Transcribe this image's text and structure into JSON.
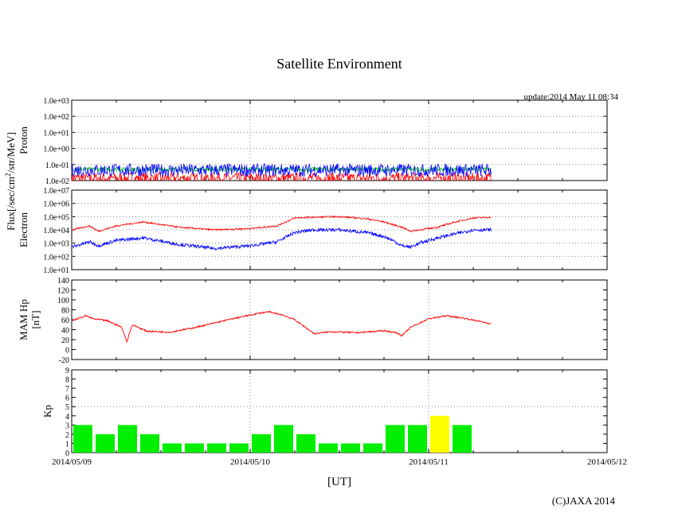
{
  "chart_data": {
    "type": "line",
    "title": "Satellite Environment",
    "update_text": "update:2014 May 11 08:34",
    "copyright": "(C)JAXA 2014",
    "xlabel": "[UT]",
    "x_ticks": [
      "2014/05/09",
      "2014/05/10",
      "2014/05/11",
      "2014/05/12"
    ],
    "flux_label_parts": {
      "base": "Flux[/sec/cm",
      "sup": "2",
      "tail": "/str/MeV]"
    },
    "panels": {
      "proton": {
        "ylabel": "Proton",
        "scale": "log",
        "ylim_exp": [
          -2,
          3
        ],
        "tick_labels": [
          "1.0e-02",
          "1.0e-01",
          "1.0e+00",
          "1.0e+01",
          "1.0e+02",
          "1.0e+03"
        ],
        "series": [
          {
            "color": "#ff0000",
            "level_exp": -1.85,
            "noise_exp": 0.35
          },
          {
            "color": "#00cc00",
            "level_exp": -1.3,
            "noise_exp": 0.12
          },
          {
            "color": "#0000ff",
            "level_exp": -1.35,
            "noise_exp": 0.4
          }
        ]
      },
      "electron": {
        "ylabel": "Electron",
        "scale": "log",
        "ylim_exp": [
          1,
          7
        ],
        "tick_labels": [
          "1.0e+01",
          "1.0e+02",
          "1.0e+03",
          "1.0e+04",
          "1.0e+05",
          "1.0e+06",
          "1.0e+07"
        ],
        "series": [
          {
            "color": "#ff0000",
            "days": [
              0.0,
              0.1,
              0.15,
              0.25,
              0.4,
              0.6,
              0.8,
              1.0,
              1.15,
              1.25,
              1.35,
              1.5,
              1.65,
              1.75,
              1.85,
              1.9,
              1.95,
              2.05,
              2.15,
              2.25,
              2.35
            ],
            "log_values": [
              4.0,
              4.3,
              3.9,
              4.3,
              4.6,
              4.2,
              4.0,
              4.1,
              4.3,
              4.9,
              4.95,
              5.0,
              4.85,
              4.6,
              4.2,
              3.9,
              4.0,
              4.2,
              4.6,
              4.9,
              4.95
            ]
          },
          {
            "color": "#0000ff",
            "days": [
              0.0,
              0.1,
              0.15,
              0.25,
              0.4,
              0.6,
              0.8,
              1.0,
              1.15,
              1.25,
              1.35,
              1.5,
              1.65,
              1.75,
              1.8,
              1.85,
              1.9,
              1.95,
              2.05,
              2.15,
              2.25,
              2.35
            ],
            "log_values": [
              2.7,
              3.1,
              2.8,
              3.2,
              3.4,
              2.9,
              2.6,
              2.8,
              3.1,
              3.8,
              4.0,
              4.0,
              3.8,
              3.5,
              3.2,
              2.8,
              2.7,
              3.0,
              3.4,
              3.7,
              4.0,
              4.0
            ]
          }
        ]
      },
      "hp": {
        "ylabel_line1": "MAM Hp",
        "ylabel_line2": "[nT]",
        "scale": "linear",
        "ylim": [
          -20,
          140
        ],
        "ticks": [
          -20,
          0,
          20,
          40,
          60,
          80,
          100,
          120,
          140
        ],
        "series": [
          {
            "color": "#ff0000",
            "days": [
              0.0,
              0.08,
              0.12,
              0.2,
              0.28,
              0.31,
              0.32,
              0.34,
              0.37,
              0.42,
              0.55,
              0.7,
              0.9,
              1.05,
              1.1,
              1.18,
              1.25,
              1.32,
              1.36,
              1.45,
              1.6,
              1.75,
              1.82,
              1.85,
              1.9,
              2.0,
              2.1,
              2.2,
              2.35
            ],
            "values": [
              58,
              68,
              62,
              58,
              45,
              15,
              30,
              50,
              45,
              37,
              35,
              45,
              62,
              73,
              76,
              70,
              60,
              42,
              32,
              36,
              34,
              38,
              34,
              28,
              45,
              62,
              68,
              63,
              52
            ]
          }
        ]
      },
      "kp": {
        "ylabel": "Kp",
        "scale": "linear",
        "ylim": [
          0,
          9
        ],
        "ticks": [
          0,
          1,
          2,
          3,
          4,
          5,
          6,
          7,
          8,
          9
        ],
        "bar_step_days": 0.125,
        "values": [
          3,
          2,
          3,
          2,
          1,
          1,
          1,
          1,
          2,
          3,
          2,
          1,
          1,
          1,
          3,
          3,
          4,
          3
        ],
        "colors": {
          "normal": "#00ee00",
          "elevated": "#ffff00"
        },
        "elevated_threshold": 4
      }
    }
  }
}
